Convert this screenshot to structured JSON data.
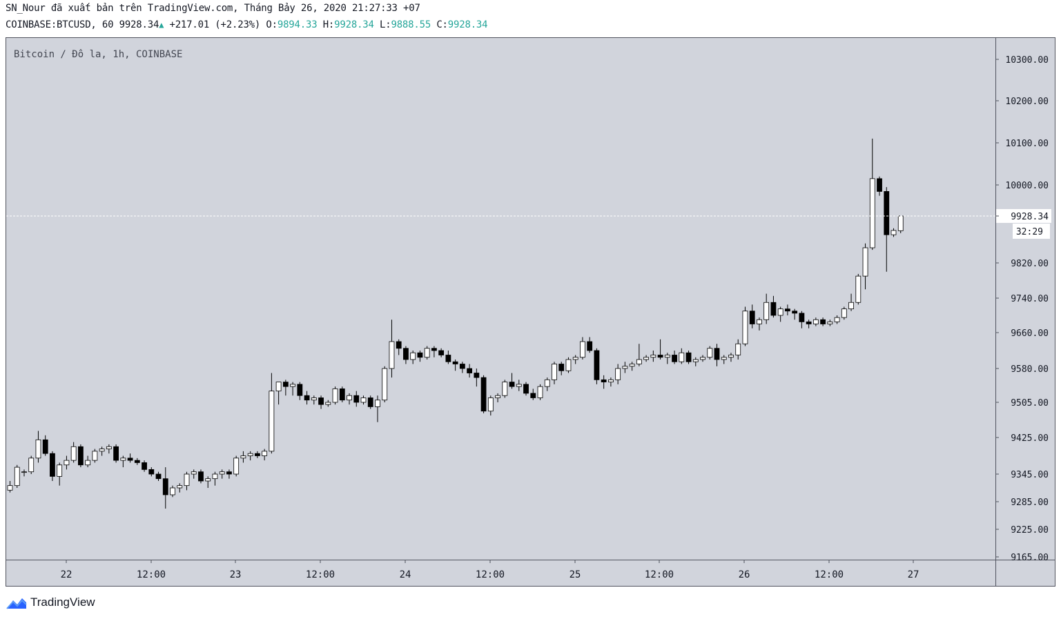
{
  "header": {
    "publish_line": "SN_Nour đã xuất bản trên TradingView.com, Tháng Bảy 26, 2020 21:27:33 +07",
    "symbol": "COINBASE:BTCUSD, 60",
    "last": "9928.34",
    "change": "+217.01 (+2.23%)",
    "o_label": "O:",
    "o_value": "9894.33",
    "h_label": "H:",
    "h_value": "9928.34",
    "l_label": "L:",
    "l_value": "9888.55",
    "c_label": "C:",
    "c_value": "9928.34"
  },
  "footer": {
    "brand": "TradingView"
  },
  "colors": {
    "background": "#d1d4dc",
    "up": "#ffffff",
    "down": "#000000",
    "wick": "#000000",
    "accent": "#26a69a"
  },
  "chart_data": {
    "type": "candlestick",
    "title": "Bitcoin / Đô la, 1h, COINBASE",
    "grid": false,
    "current_price": 9928.34,
    "countdown": "32:29",
    "x_ticks": [
      "22",
      "12:00",
      "23",
      "12:00",
      "24",
      "12:00",
      "25",
      "12:00",
      "26",
      "12:00",
      "27"
    ],
    "y_ticks": [
      10300,
      10200,
      10100,
      10000,
      9928.34,
      9820,
      9740,
      9660,
      9580,
      9505,
      9425,
      9345,
      9285,
      9225,
      9165
    ],
    "y_tick_labels": [
      "10300.00",
      "10200.00",
      "10100.00",
      "10000.00",
      "9928.34",
      "9820.00",
      "9740.00",
      "9660.00",
      "9580.00",
      "9505.00",
      "9425.00",
      "9345.00",
      "9285.00",
      "9225.00",
      "9165.00"
    ],
    "ohlc": [
      [
        9310,
        9330,
        9305,
        9320
      ],
      [
        9320,
        9365,
        9315,
        9360
      ],
      [
        9350,
        9355,
        9340,
        9350
      ],
      [
        9350,
        9385,
        9345,
        9380
      ],
      [
        9380,
        9440,
        9370,
        9420
      ],
      [
        9420,
        9430,
        9385,
        9390
      ],
      [
        9390,
        9395,
        9330,
        9340
      ],
      [
        9340,
        9370,
        9320,
        9365
      ],
      [
        9365,
        9385,
        9355,
        9375
      ],
      [
        9375,
        9415,
        9370,
        9405
      ],
      [
        9405,
        9410,
        9360,
        9365
      ],
      [
        9365,
        9385,
        9360,
        9375
      ],
      [
        9375,
        9400,
        9370,
        9395
      ],
      [
        9395,
        9405,
        9385,
        9400
      ],
      [
        9400,
        9410,
        9390,
        9405
      ],
      [
        9405,
        9410,
        9370,
        9375
      ],
      [
        9375,
        9385,
        9360,
        9380
      ],
      [
        9380,
        9390,
        9370,
        9375
      ],
      [
        9375,
        9380,
        9365,
        9370
      ],
      [
        9370,
        9375,
        9350,
        9355
      ],
      [
        9355,
        9360,
        9340,
        9345
      ],
      [
        9345,
        9350,
        9330,
        9335
      ],
      [
        9335,
        9360,
        9270,
        9300
      ],
      [
        9300,
        9320,
        9295,
        9315
      ],
      [
        9315,
        9325,
        9305,
        9320
      ],
      [
        9320,
        9350,
        9310,
        9345
      ],
      [
        9345,
        9355,
        9335,
        9350
      ],
      [
        9350,
        9355,
        9325,
        9330
      ],
      [
        9330,
        9340,
        9315,
        9335
      ],
      [
        9335,
        9350,
        9320,
        9345
      ],
      [
        9345,
        9355,
        9335,
        9350
      ],
      [
        9350,
        9355,
        9335,
        9345
      ],
      [
        9345,
        9385,
        9340,
        9380
      ],
      [
        9380,
        9395,
        9370,
        9385
      ],
      [
        9385,
        9395,
        9375,
        9390
      ],
      [
        9390,
        9395,
        9380,
        9385
      ],
      [
        9385,
        9400,
        9375,
        9395
      ],
      [
        9395,
        9570,
        9390,
        9530
      ],
      [
        9530,
        9550,
        9500,
        9550
      ],
      [
        9550,
        9555,
        9520,
        9540
      ],
      [
        9540,
        9550,
        9520,
        9545
      ],
      [
        9545,
        9550,
        9510,
        9520
      ],
      [
        9520,
        9530,
        9500,
        9510
      ],
      [
        9510,
        9520,
        9500,
        9515
      ],
      [
        9515,
        9520,
        9490,
        9500
      ],
      [
        9500,
        9510,
        9495,
        9505
      ],
      [
        9505,
        9540,
        9500,
        9535
      ],
      [
        9535,
        9540,
        9505,
        9510
      ],
      [
        9510,
        9525,
        9500,
        9520
      ],
      [
        9520,
        9530,
        9495,
        9505
      ],
      [
        9505,
        9520,
        9500,
        9515
      ],
      [
        9515,
        9520,
        9490,
        9495
      ],
      [
        9495,
        9520,
        9460,
        9510
      ],
      [
        9510,
        9585,
        9505,
        9580
      ],
      [
        9580,
        9690,
        9560,
        9640
      ],
      [
        9640,
        9645,
        9610,
        9625
      ],
      [
        9625,
        9630,
        9590,
        9600
      ],
      [
        9600,
        9620,
        9590,
        9615
      ],
      [
        9615,
        9620,
        9595,
        9605
      ],
      [
        9605,
        9630,
        9600,
        9625
      ],
      [
        9625,
        9630,
        9605,
        9620
      ],
      [
        9620,
        9625,
        9605,
        9610
      ],
      [
        9610,
        9620,
        9590,
        9595
      ],
      [
        9595,
        9600,
        9575,
        9590
      ],
      [
        9590,
        9595,
        9570,
        9580
      ],
      [
        9580,
        9590,
        9560,
        9570
      ],
      [
        9570,
        9580,
        9540,
        9560
      ],
      [
        9560,
        9565,
        9480,
        9485
      ],
      [
        9485,
        9520,
        9475,
        9515
      ],
      [
        9515,
        9525,
        9505,
        9520
      ],
      [
        9520,
        9555,
        9515,
        9550
      ],
      [
        9550,
        9570,
        9535,
        9540
      ],
      [
        9540,
        9555,
        9530,
        9545
      ],
      [
        9545,
        9550,
        9520,
        9525
      ],
      [
        9525,
        9535,
        9510,
        9515
      ],
      [
        9515,
        9545,
        9510,
        9540
      ],
      [
        9540,
        9560,
        9530,
        9555
      ],
      [
        9555,
        9595,
        9545,
        9590
      ],
      [
        9590,
        9595,
        9565,
        9575
      ],
      [
        9575,
        9605,
        9570,
        9600
      ],
      [
        9600,
        9610,
        9590,
        9605
      ],
      [
        9605,
        9650,
        9600,
        9640
      ],
      [
        9640,
        9650,
        9615,
        9620
      ],
      [
        9620,
        9625,
        9545,
        9555
      ],
      [
        9555,
        9565,
        9535,
        9550
      ],
      [
        9550,
        9560,
        9540,
        9555
      ],
      [
        9555,
        9590,
        9545,
        9580
      ],
      [
        9580,
        9595,
        9570,
        9585
      ],
      [
        9585,
        9595,
        9575,
        9590
      ],
      [
        9590,
        9635,
        9585,
        9600
      ],
      [
        9600,
        9610,
        9595,
        9605
      ],
      [
        9605,
        9620,
        9595,
        9610
      ],
      [
        9610,
        9645,
        9600,
        9605
      ],
      [
        9605,
        9615,
        9590,
        9610
      ],
      [
        9610,
        9620,
        9590,
        9595
      ],
      [
        9595,
        9625,
        9590,
        9615
      ],
      [
        9615,
        9620,
        9590,
        9595
      ],
      [
        9595,
        9605,
        9585,
        9600
      ],
      [
        9600,
        9610,
        9595,
        9605
      ],
      [
        9605,
        9630,
        9600,
        9625
      ],
      [
        9625,
        9635,
        9585,
        9600
      ],
      [
        9600,
        9610,
        9590,
        9605
      ],
      [
        9605,
        9615,
        9595,
        9610
      ],
      [
        9610,
        9645,
        9600,
        9635
      ],
      [
        9635,
        9720,
        9630,
        9710
      ],
      [
        9710,
        9725,
        9670,
        9680
      ],
      [
        9680,
        9695,
        9665,
        9690
      ],
      [
        9690,
        9750,
        9680,
        9730
      ],
      [
        9730,
        9745,
        9695,
        9700
      ],
      [
        9700,
        9720,
        9685,
        9715
      ],
      [
        9715,
        9725,
        9700,
        9710
      ],
      [
        9710,
        9715,
        9690,
        9705
      ],
      [
        9705,
        9710,
        9670,
        9685
      ],
      [
        9685,
        9690,
        9670,
        9680
      ],
      [
        9680,
        9695,
        9675,
        9690
      ],
      [
        9690,
        9695,
        9675,
        9680
      ],
      [
        9680,
        9690,
        9675,
        9685
      ],
      [
        9685,
        9700,
        9680,
        9695
      ],
      [
        9695,
        9720,
        9690,
        9715
      ],
      [
        9715,
        9750,
        9710,
        9730
      ],
      [
        9730,
        9795,
        9725,
        9790
      ],
      [
        9790,
        9865,
        9760,
        9855
      ],
      [
        9855,
        10110,
        9850,
        10015
      ],
      [
        10015,
        10020,
        9975,
        9985
      ],
      [
        9985,
        9995,
        9800,
        9885
      ],
      [
        9885,
        9900,
        9880,
        9895
      ],
      [
        9894.33,
        9928.34,
        9888.55,
        9928.34
      ]
    ]
  }
}
